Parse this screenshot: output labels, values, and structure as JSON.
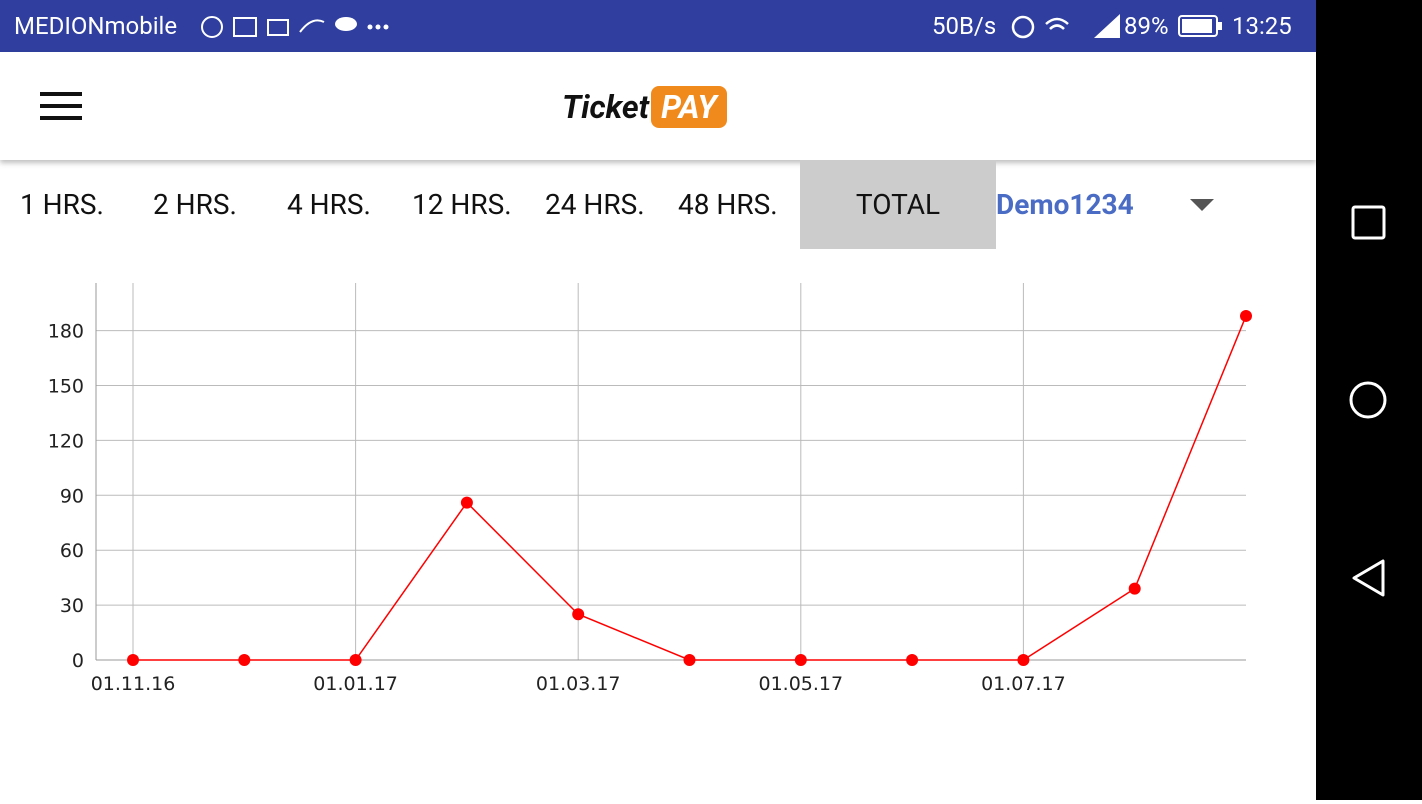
{
  "status_bar": {
    "carrier": "MEDIONmobile",
    "speed": "50B/s",
    "battery": "89%",
    "time": "13:25"
  },
  "header": {
    "logo_text": "Ticket",
    "logo_badge": "PAY"
  },
  "tabs": [
    "1 HRS.",
    "2 HRS.",
    "4 HRS.",
    "12 HRS.",
    "24 HRS.",
    "48 HRS.",
    "TOTAL"
  ],
  "dropdown": "Demo1234",
  "chart_data": {
    "type": "line",
    "categories": [
      "01.11.16",
      null,
      "01.01.17",
      null,
      "01.03.17",
      null,
      "01.05.17",
      null,
      "01.07.17",
      null,
      null
    ],
    "series": [
      {
        "color": "#ff0000",
        "values": [
          0,
          0,
          0,
          86,
          25,
          0,
          0,
          0,
          0,
          39,
          188
        ]
      }
    ],
    "ylim": [
      0,
      206
    ],
    "yticks": [
      0,
      30,
      60,
      90,
      120,
      150,
      180
    ],
    "grid": true
  }
}
